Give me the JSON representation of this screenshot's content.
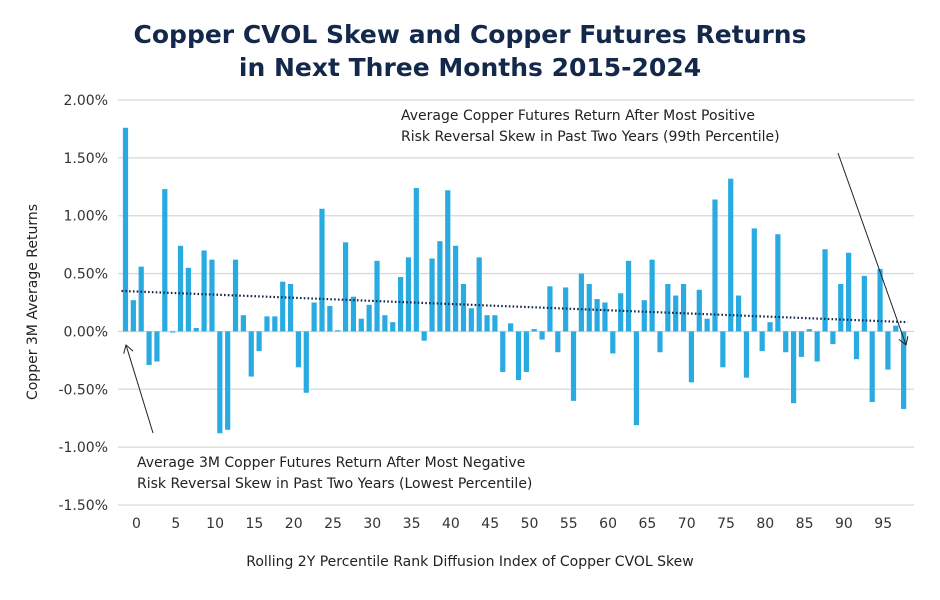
{
  "chart_data": {
    "type": "bar",
    "title_lines": [
      "Copper CVOL Skew and Copper Futures Returns",
      "in Next Three Months 2015-2024"
    ],
    "xlabel": "Rolling 2Y Percentile Rank Diffusion Index of Copper CVOL Skew",
    "ylabel": "Copper  3M Average Returns",
    "ylim": [
      -1.5,
      2.0
    ],
    "yticks": [
      2.0,
      1.5,
      1.0,
      0.5,
      0.0,
      -0.5,
      -1.0,
      -1.5
    ],
    "ytick_labels": [
      "2.00%",
      "1.50%",
      "1.00%",
      "0.50%",
      "0.00%",
      "-0.50%",
      "-1.00%",
      "-1.50%"
    ],
    "xticks": [
      0,
      5,
      10,
      15,
      20,
      25,
      30,
      35,
      40,
      45,
      50,
      55,
      60,
      65,
      70,
      75,
      80,
      85,
      90,
      95
    ],
    "grid": "horizontal",
    "bar_color": "#29abe2",
    "trendline": {
      "style": "dotted",
      "color": "#14284b",
      "start": 0.35,
      "end": 0.08
    },
    "x": [
      0,
      1,
      2,
      3,
      4,
      5,
      6,
      7,
      8,
      9,
      10,
      11,
      12,
      13,
      14,
      15,
      16,
      17,
      18,
      19,
      20,
      21,
      22,
      23,
      24,
      25,
      26,
      27,
      28,
      29,
      30,
      31,
      32,
      33,
      34,
      35,
      36,
      37,
      38,
      39,
      40,
      41,
      42,
      43,
      44,
      45,
      46,
      47,
      48,
      49,
      50,
      51,
      52,
      53,
      54,
      55,
      56,
      57,
      58,
      59,
      60,
      61,
      62,
      63,
      64,
      65,
      66,
      67,
      68,
      69,
      70,
      71,
      72,
      73,
      74,
      75,
      76,
      77,
      78,
      79,
      80,
      81,
      82,
      83,
      84,
      85,
      86,
      87,
      88,
      89,
      90,
      91,
      92,
      93,
      94,
      95,
      96,
      97,
      98,
      99
    ],
    "values": [
      1.76,
      0.27,
      0.56,
      -0.29,
      -0.26,
      1.23,
      -0.01,
      0.74,
      0.55,
      0.03,
      0.7,
      0.62,
      -0.88,
      -0.85,
      0.62,
      0.14,
      -0.39,
      -0.17,
      0.13,
      0.13,
      0.43,
      0.41,
      -0.31,
      -0.53,
      0.25,
      1.06,
      0.22,
      0.01,
      0.77,
      0.3,
      0.11,
      0.23,
      0.61,
      0.14,
      0.08,
      0.47,
      0.64,
      1.24,
      -0.08,
      0.63,
      0.78,
      1.22,
      0.74,
      0.41,
      0.2,
      0.64,
      0.14,
      0.14,
      -0.35,
      0.07,
      -0.42,
      -0.35,
      0.02,
      -0.07,
      0.39,
      -0.18,
      0.38,
      -0.6,
      0.5,
      0.41,
      0.28,
      0.25,
      -0.19,
      0.33,
      0.61,
      -0.81,
      0.27,
      0.62,
      -0.18,
      0.41,
      0.31,
      0.41,
      -0.44,
      0.36,
      0.11,
      1.14,
      -0.31,
      1.32,
      0.31,
      -0.4,
      0.89,
      -0.17,
      0.08,
      0.84,
      -0.18,
      -0.62,
      -0.22,
      0.02,
      -0.26,
      0.71,
      -0.11,
      0.41,
      0.68,
      -0.24,
      0.48,
      -0.61,
      0.54,
      -0.33,
      0.05,
      -0.67
    ],
    "annotations": [
      {
        "lines": [
          "Average Copper Futures Return After Most Positive",
          "Risk Reversal Skew in Past Two Years (99th Percentile)"
        ],
        "points_to_x": 99
      },
      {
        "lines": [
          "Average 3M Copper Futures Return After Most Negative",
          "Risk Reversal Skew in Past Two Years (Lowest Percentile)"
        ],
        "points_to_x": 0
      }
    ]
  }
}
